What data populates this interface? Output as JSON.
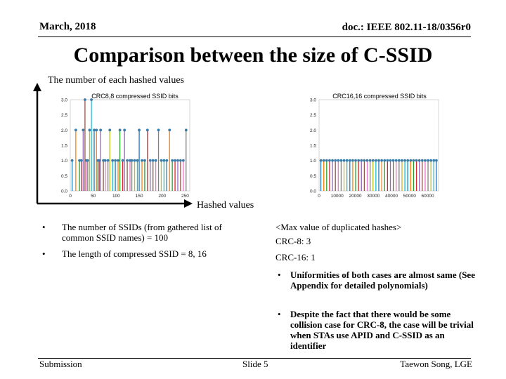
{
  "header": {
    "date": "March, 2018",
    "doc_id": "doc.: IEEE 802.11-18/0356r0"
  },
  "title": "Comparison between the size of C-SSID",
  "axis_labels": {
    "y": "The number of each hashed values",
    "x": "Hashed values"
  },
  "chart_data": [
    {
      "type": "stem",
      "title": "CRC8,8 compressed SSID bits",
      "ylim": [
        0,
        3.0
      ],
      "yticks": [
        "3.0",
        "2.5",
        "2.0",
        "1.5",
        "1.0",
        "0.5",
        "0.0"
      ],
      "xlim": [
        0,
        260
      ],
      "xticks": [
        "0",
        "50",
        "100",
        "150",
        "200",
        "250"
      ],
      "points": [
        {
          "x": 4,
          "y": 1
        },
        {
          "x": 12,
          "y": 2
        },
        {
          "x": 20,
          "y": 1
        },
        {
          "x": 24,
          "y": 1
        },
        {
          "x": 28,
          "y": 2
        },
        {
          "x": 32,
          "y": 3
        },
        {
          "x": 35,
          "y": 1
        },
        {
          "x": 38,
          "y": 1
        },
        {
          "x": 42,
          "y": 2
        },
        {
          "x": 46,
          "y": 3
        },
        {
          "x": 52,
          "y": 2
        },
        {
          "x": 57,
          "y": 2
        },
        {
          "x": 60,
          "y": 1
        },
        {
          "x": 63,
          "y": 1
        },
        {
          "x": 66,
          "y": 2
        },
        {
          "x": 72,
          "y": 1
        },
        {
          "x": 76,
          "y": 1
        },
        {
          "x": 82,
          "y": 1
        },
        {
          "x": 86,
          "y": 2
        },
        {
          "x": 92,
          "y": 1
        },
        {
          "x": 98,
          "y": 1
        },
        {
          "x": 104,
          "y": 1
        },
        {
          "x": 108,
          "y": 2
        },
        {
          "x": 114,
          "y": 1
        },
        {
          "x": 118,
          "y": 2
        },
        {
          "x": 124,
          "y": 1
        },
        {
          "x": 130,
          "y": 1
        },
        {
          "x": 134,
          "y": 1
        },
        {
          "x": 140,
          "y": 1
        },
        {
          "x": 146,
          "y": 1
        },
        {
          "x": 150,
          "y": 2
        },
        {
          "x": 156,
          "y": 1
        },
        {
          "x": 162,
          "y": 1
        },
        {
          "x": 168,
          "y": 2
        },
        {
          "x": 174,
          "y": 1
        },
        {
          "x": 180,
          "y": 1
        },
        {
          "x": 186,
          "y": 1
        },
        {
          "x": 192,
          "y": 2
        },
        {
          "x": 198,
          "y": 1
        },
        {
          "x": 204,
          "y": 1
        },
        {
          "x": 210,
          "y": 1
        },
        {
          "x": 216,
          "y": 2
        },
        {
          "x": 222,
          "y": 1
        },
        {
          "x": 228,
          "y": 1
        },
        {
          "x": 234,
          "y": 1
        },
        {
          "x": 240,
          "y": 1
        },
        {
          "x": 246,
          "y": 1
        },
        {
          "x": 252,
          "y": 2
        }
      ]
    },
    {
      "type": "stem",
      "title": "CRC16,16 compressed SSID bits",
      "ylim": [
        0,
        3.0
      ],
      "yticks": [
        "3.0",
        "2.5",
        "2.0",
        "1.5",
        "1.0",
        "0.5",
        "0.0"
      ],
      "xlim": [
        0,
        66000
      ],
      "xticks": [
        "0",
        "10000",
        "20000",
        "30000",
        "40000",
        "50000",
        "60000"
      ],
      "points": [
        {
          "x": 1000,
          "y": 1
        },
        {
          "x": 2600,
          "y": 1
        },
        {
          "x": 4200,
          "y": 1
        },
        {
          "x": 5800,
          "y": 1
        },
        {
          "x": 7400,
          "y": 1
        },
        {
          "x": 9000,
          "y": 1
        },
        {
          "x": 10600,
          "y": 1
        },
        {
          "x": 12200,
          "y": 1
        },
        {
          "x": 13800,
          "y": 1
        },
        {
          "x": 15400,
          "y": 1
        },
        {
          "x": 17000,
          "y": 1
        },
        {
          "x": 18600,
          "y": 1
        },
        {
          "x": 20200,
          "y": 1
        },
        {
          "x": 21800,
          "y": 1
        },
        {
          "x": 23400,
          "y": 1
        },
        {
          "x": 25000,
          "y": 1
        },
        {
          "x": 26600,
          "y": 1
        },
        {
          "x": 28200,
          "y": 1
        },
        {
          "x": 29800,
          "y": 1
        },
        {
          "x": 31400,
          "y": 1
        },
        {
          "x": 33000,
          "y": 1
        },
        {
          "x": 34600,
          "y": 1
        },
        {
          "x": 36200,
          "y": 1
        },
        {
          "x": 37800,
          "y": 1
        },
        {
          "x": 39400,
          "y": 1
        },
        {
          "x": 41000,
          "y": 1
        },
        {
          "x": 42600,
          "y": 1
        },
        {
          "x": 44200,
          "y": 1
        },
        {
          "x": 45800,
          "y": 1
        },
        {
          "x": 47400,
          "y": 1
        },
        {
          "x": 49000,
          "y": 1
        },
        {
          "x": 50600,
          "y": 1
        },
        {
          "x": 52200,
          "y": 1
        },
        {
          "x": 53800,
          "y": 1
        },
        {
          "x": 55400,
          "y": 1
        },
        {
          "x": 57000,
          "y": 1
        },
        {
          "x": 58600,
          "y": 1
        },
        {
          "x": 60200,
          "y": 1
        },
        {
          "x": 61800,
          "y": 1
        },
        {
          "x": 63400,
          "y": 1
        },
        {
          "x": 64800,
          "y": 1
        }
      ]
    }
  ],
  "left_bullets": [
    "The number of SSIDs (from gathered list of common SSID names) = 100",
    "The length of compressed SSID = 8, 16"
  ],
  "bullet_glyph": "•",
  "right_col": {
    "heading": "<Max value of duplicated hashes>",
    "crc8": "CRC-8: 3",
    "crc16": "CRC-16: 1",
    "bullets": [
      "Uniformities of both cases are almost same (See Appendix for detailed polynomials)",
      "Despite the fact that there would be some collision case for CRC-8, the case will be trivial when STAs use APID and C-SSID as an identifier"
    ]
  },
  "footer": {
    "left": "Submission",
    "center": "Slide 5",
    "right": "Taewon Song, LGE"
  },
  "colors": {
    "marker": "#3a7ba8",
    "stem_palette": [
      "#1f77b4",
      "#ff7f0e",
      "#2ca02c",
      "#d62728",
      "#9467bd",
      "#8c564b",
      "#e377c2",
      "#7f7f7f",
      "#bcbd22",
      "#17becf"
    ]
  }
}
